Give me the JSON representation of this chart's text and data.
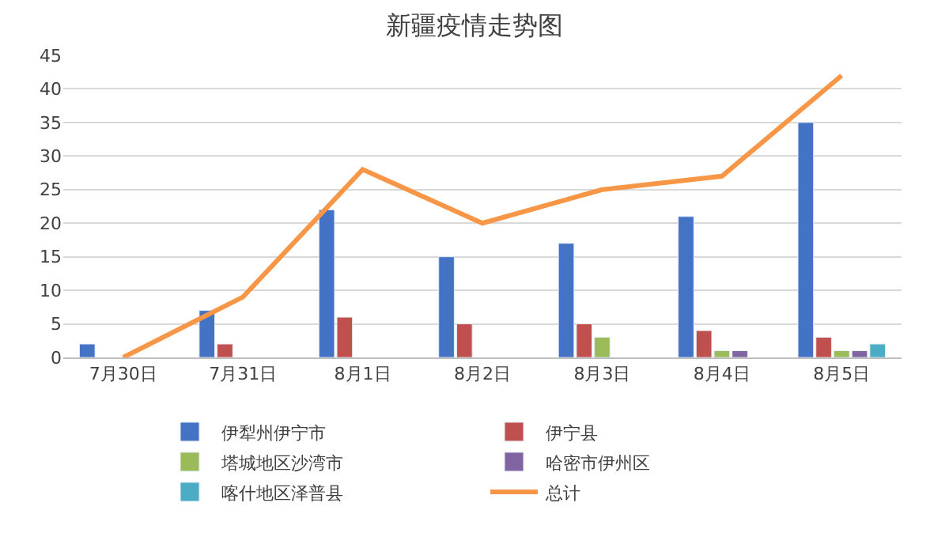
{
  "chart_data": {
    "type": "bar",
    "title": "新疆疫情走势图",
    "categories": [
      "7月30日",
      "7月31日",
      "8月1日",
      "8月2日",
      "8月3日",
      "8月4日",
      "8月5日"
    ],
    "series": [
      {
        "name": "伊犁州伊宁市",
        "color": "#4472c4",
        "values": [
          2,
          7,
          22,
          15,
          17,
          21,
          35
        ]
      },
      {
        "name": "伊宁县",
        "color": "#c0504d",
        "values": [
          null,
          2,
          6,
          5,
          5,
          4,
          3
        ]
      },
      {
        "name": "塔城地区沙湾市",
        "color": "#9bbb59",
        "values": [
          null,
          null,
          null,
          null,
          3,
          1,
          1
        ]
      },
      {
        "name": "哈密市伊州区",
        "color": "#8064a2",
        "values": [
          null,
          null,
          null,
          null,
          null,
          1,
          1
        ]
      },
      {
        "name": "喀什地区泽普县",
        "color": "#4bacc6",
        "values": [
          null,
          null,
          null,
          null,
          null,
          null,
          2
        ]
      },
      {
        "name": "总计",
        "color": "#f79646",
        "type": "line",
        "values": [
          0,
          9,
          28,
          20,
          25,
          27,
          42
        ]
      }
    ],
    "ylim": [
      0,
      45
    ],
    "yticks": [
      0,
      5,
      10,
      15,
      20,
      25,
      30,
      35,
      40,
      45
    ],
    "grid": "y",
    "legend": "bottom",
    "marker": "none"
  }
}
